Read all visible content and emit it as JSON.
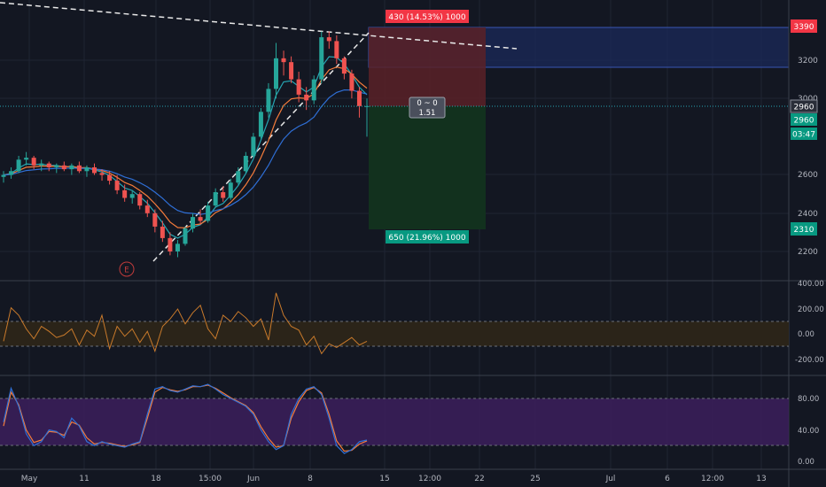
{
  "colors": {
    "bg": "#131722",
    "grid": "#1f2433",
    "divider": "#3a3f4b",
    "axis_text": "#b2b5be",
    "bull": "#26a69a",
    "bear": "#ef5350",
    "ema_fast": "#f57c3b",
    "ema_mid": "#26a6b3",
    "ema_slow": "#2f6fd6",
    "trend": "#e8e8e8",
    "stop_zone": "#5b2127",
    "target_zone": "#12331f",
    "blue_zone": "#1b2a5a",
    "red_tag": "#f23645",
    "green_tag": "#089981",
    "stoch_band": "#3c1f5c",
    "stoch_k": "#2f6fd6",
    "stoch_d": "#f57c3b",
    "cci_band": "#2b2419",
    "cci_line": "#c97a2b"
  },
  "position": {
    "stop_label": "430 (14.53%) 1000",
    "target_label": "650 (21.96%) 1000",
    "rr_top": "0 ~ 0",
    "rr_bottom": "1.51"
  },
  "earnings_marker": "E",
  "price_axis": {
    "ticks": [
      "3200",
      "3000",
      "2600",
      "2400",
      "2200"
    ],
    "tag_top": "3390",
    "tag_price": "2960",
    "tag_price2": "2960",
    "tag_countdown": "03:47",
    "tag_bottom": "2310"
  },
  "cci_axis": {
    "ticks": [
      "400.00",
      "200.00",
      "0.00",
      "-200.00"
    ]
  },
  "stoch_axis": {
    "ticks": [
      "80.00",
      "40.00",
      "0.00"
    ]
  },
  "time_axis": {
    "labels": [
      "May",
      "11",
      "18",
      "15:00",
      "Jun",
      "8",
      "15",
      "12:00",
      "22",
      "25",
      "Jul",
      "6",
      "12:00",
      "13"
    ]
  },
  "chart_data": {
    "type": "candlestick",
    "price_range": [
      2060,
      3460
    ],
    "ohlc": [
      [
        2590,
        2620,
        2560,
        2600
      ],
      [
        2600,
        2640,
        2580,
        2620
      ],
      [
        2620,
        2700,
        2610,
        2680
      ],
      [
        2680,
        2720,
        2650,
        2690
      ],
      [
        2690,
        2700,
        2630,
        2650
      ],
      [
        2650,
        2680,
        2620,
        2660
      ],
      [
        2660,
        2670,
        2620,
        2640
      ],
      [
        2640,
        2660,
        2610,
        2650
      ],
      [
        2650,
        2670,
        2620,
        2630
      ],
      [
        2630,
        2660,
        2600,
        2650
      ],
      [
        2650,
        2670,
        2610,
        2620
      ],
      [
        2620,
        2650,
        2590,
        2640
      ],
      [
        2640,
        2660,
        2600,
        2610
      ],
      [
        2610,
        2630,
        2570,
        2600
      ],
      [
        2600,
        2620,
        2550,
        2570
      ],
      [
        2570,
        2600,
        2500,
        2520
      ],
      [
        2520,
        2550,
        2460,
        2480
      ],
      [
        2480,
        2520,
        2450,
        2500
      ],
      [
        2500,
        2510,
        2420,
        2440
      ],
      [
        2440,
        2470,
        2380,
        2400
      ],
      [
        2400,
        2420,
        2300,
        2330
      ],
      [
        2330,
        2360,
        2250,
        2270
      ],
      [
        2270,
        2300,
        2180,
        2200
      ],
      [
        2200,
        2260,
        2170,
        2240
      ],
      [
        2240,
        2330,
        2230,
        2320
      ],
      [
        2320,
        2400,
        2300,
        2380
      ],
      [
        2380,
        2420,
        2340,
        2360
      ],
      [
        2360,
        2460,
        2350,
        2440
      ],
      [
        2440,
        2530,
        2430,
        2510
      ],
      [
        2510,
        2540,
        2460,
        2480
      ],
      [
        2480,
        2580,
        2470,
        2560
      ],
      [
        2560,
        2640,
        2550,
        2620
      ],
      [
        2620,
        2720,
        2610,
        2700
      ],
      [
        2700,
        2820,
        2690,
        2800
      ],
      [
        2800,
        2950,
        2790,
        2930
      ],
      [
        2930,
        3080,
        2900,
        3050
      ],
      [
        3050,
        3290,
        3000,
        3210
      ],
      [
        3210,
        3250,
        3120,
        3190
      ],
      [
        3190,
        3220,
        3080,
        3100
      ],
      [
        3100,
        3140,
        2980,
        3020
      ],
      [
        3020,
        3060,
        2940,
        2990
      ],
      [
        2990,
        3120,
        2970,
        3100
      ],
      [
        3100,
        3350,
        3080,
        3320
      ],
      [
        3320,
        3350,
        3260,
        3300
      ],
      [
        3300,
        3330,
        3180,
        3210
      ],
      [
        3210,
        3220,
        3100,
        3130
      ],
      [
        3130,
        3150,
        3000,
        3040
      ],
      [
        3040,
        3060,
        2900,
        2960
      ],
      [
        2960,
        3000,
        2800,
        2960
      ]
    ],
    "cci": [
      -60,
      210,
      150,
      40,
      -40,
      60,
      20,
      -30,
      -10,
      40,
      -90,
      30,
      -20,
      150,
      -120,
      60,
      -20,
      40,
      -70,
      20,
      -140,
      60,
      120,
      200,
      80,
      170,
      230,
      40,
      -40,
      150,
      100,
      180,
      130,
      60,
      120,
      -50,
      330,
      150,
      60,
      30,
      -90,
      -20,
      -160,
      -80,
      -110,
      -70,
      -30,
      -90,
      -60
    ],
    "stoch_k": [
      50,
      93,
      70,
      35,
      20,
      25,
      40,
      38,
      30,
      55,
      45,
      25,
      20,
      25,
      22,
      20,
      18,
      22,
      25,
      60,
      92,
      95,
      90,
      88,
      92,
      96,
      95,
      98,
      92,
      85,
      80,
      75,
      70,
      60,
      40,
      25,
      15,
      20,
      60,
      80,
      92,
      95,
      85,
      55,
      20,
      10,
      15,
      25,
      27
    ],
    "stoch_d": [
      45,
      88,
      72,
      40,
      24,
      27,
      38,
      37,
      33,
      50,
      46,
      30,
      22,
      24,
      23,
      21,
      19,
      21,
      24,
      55,
      88,
      94,
      91,
      89,
      91,
      95,
      95,
      97,
      93,
      87,
      81,
      76,
      71,
      62,
      44,
      29,
      18,
      20,
      55,
      76,
      90,
      94,
      87,
      60,
      26,
      13,
      14,
      22,
      26
    ]
  }
}
